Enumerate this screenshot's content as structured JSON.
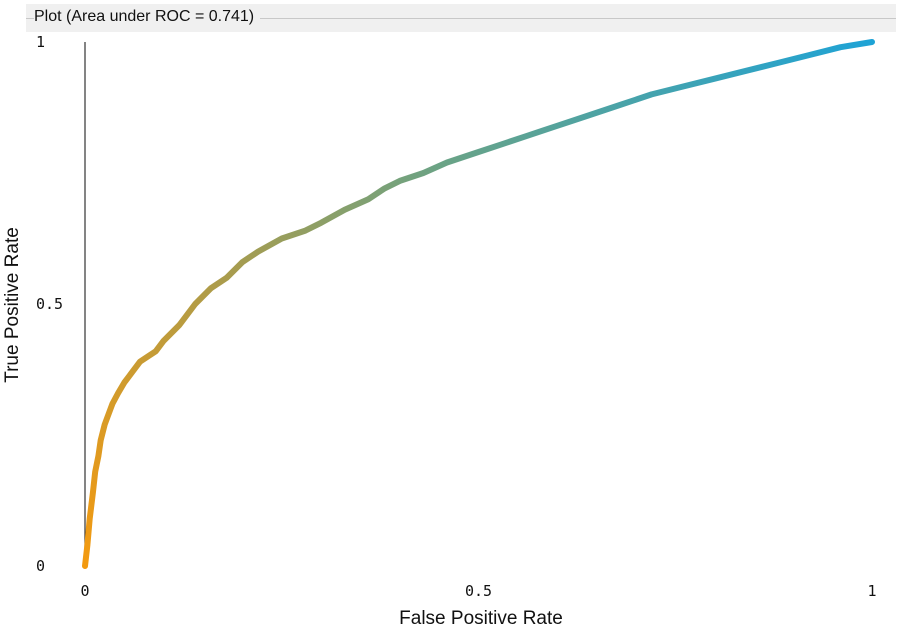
{
  "header": {
    "title": "Plot (Area under ROC = 0.741)"
  },
  "chart_data": {
    "type": "line",
    "title": "Plot (Area under ROC = 0.741)",
    "xlabel": "False Positive Rate",
    "ylabel": "True Positive Rate",
    "xlim": [
      0,
      1
    ],
    "ylim": [
      0,
      1
    ],
    "x_ticks": [
      {
        "value": 0,
        "label": "0"
      },
      {
        "value": 0.5,
        "label": "0.5"
      },
      {
        "value": 1,
        "label": "1"
      }
    ],
    "y_ticks": [
      {
        "value": 0,
        "label": "0"
      },
      {
        "value": 0.5,
        "label": "0.5"
      },
      {
        "value": 1,
        "label": "1"
      }
    ],
    "grid": false,
    "legend": "none",
    "gradient_colors": [
      "#f39a10",
      "#a89c4e",
      "#6aa386",
      "#1ea3d6"
    ],
    "series": [
      {
        "x": [
          0.0,
          0.003,
          0.006,
          0.01,
          0.013,
          0.017,
          0.02,
          0.025,
          0.03,
          0.035,
          0.042,
          0.05,
          0.06,
          0.07,
          0.08,
          0.09,
          0.1,
          0.12,
          0.14,
          0.16,
          0.18,
          0.2,
          0.22,
          0.25,
          0.28,
          0.3,
          0.33,
          0.36,
          0.38,
          0.4,
          0.43,
          0.46,
          0.5,
          0.53,
          0.56,
          0.6,
          0.64,
          0.68,
          0.72,
          0.76,
          0.8,
          0.84,
          0.88,
          0.92,
          0.96,
          1.0
        ],
        "y": [
          0.0,
          0.04,
          0.09,
          0.14,
          0.18,
          0.21,
          0.24,
          0.27,
          0.29,
          0.31,
          0.33,
          0.35,
          0.37,
          0.39,
          0.4,
          0.41,
          0.43,
          0.46,
          0.5,
          0.53,
          0.55,
          0.58,
          0.6,
          0.625,
          0.64,
          0.655,
          0.68,
          0.7,
          0.72,
          0.735,
          0.75,
          0.77,
          0.79,
          0.805,
          0.82,
          0.84,
          0.86,
          0.88,
          0.9,
          0.915,
          0.93,
          0.945,
          0.96,
          0.975,
          0.99,
          1.0
        ]
      }
    ]
  }
}
